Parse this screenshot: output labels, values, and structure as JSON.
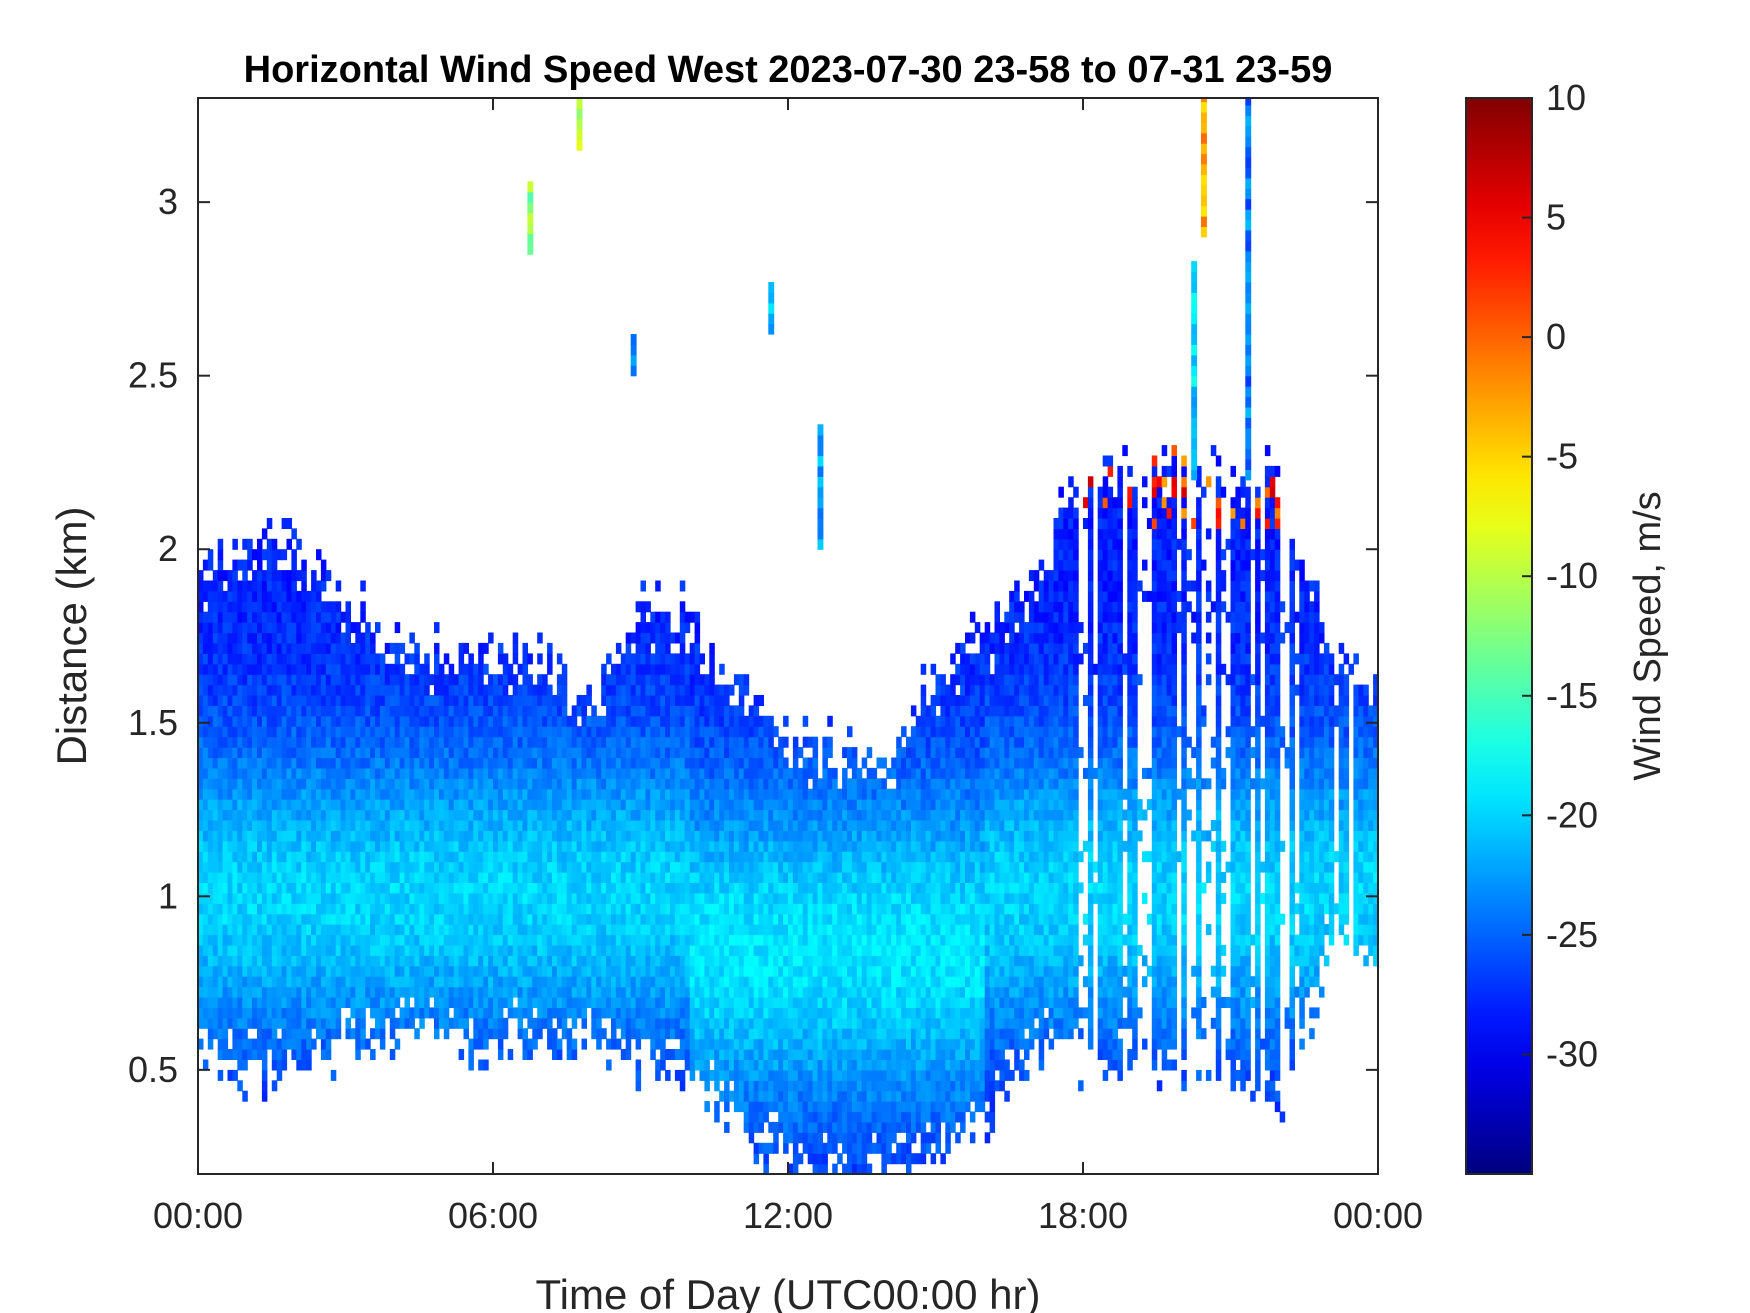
{
  "chart_data": {
    "type": "heatmap",
    "title": "Horizontal Wind Speed West 2023-07-30 23-58 to 07-31 23-59",
    "xlabel": "Time of Day (UTC00:00 hr)",
    "ylabel": "Distance (km)",
    "x_ticks": [
      "00:00",
      "06:00",
      "12:00",
      "18:00",
      "00:00"
    ],
    "x_tick_hours": [
      0,
      6,
      12,
      18,
      24
    ],
    "xlim_hours": [
      0,
      24
    ],
    "y_ticks": [
      0.5,
      1,
      1.5,
      2,
      2.5,
      3
    ],
    "y_tick_labels": [
      "0.5",
      "1",
      "1.5",
      "2",
      "2.5",
      "3"
    ],
    "ylim": [
      0.2,
      3.3
    ],
    "colorbar": {
      "label": "Wind Speed, m/s",
      "colormap": "jet",
      "range": [
        -35,
        10
      ],
      "ticks": [
        10,
        5,
        0,
        -5,
        -10,
        -15,
        -20,
        -25,
        -30
      ],
      "tick_labels": [
        "10",
        "5",
        "0",
        "-5",
        "-10",
        "-15",
        "-20",
        "-25",
        "-30"
      ]
    },
    "grid": false,
    "colors": {
      "missing": "#ffffff",
      "axis": "#262626"
    },
    "layer_profile": [
      {
        "hour": 0.0,
        "bottom": 0.55,
        "top": 1.95
      },
      {
        "hour": 1.0,
        "bottom": 0.5,
        "top": 1.98
      },
      {
        "hour": 2.0,
        "bottom": 0.52,
        "top": 2.0
      },
      {
        "hour": 3.0,
        "bottom": 0.58,
        "top": 1.85
      },
      {
        "hour": 4.0,
        "bottom": 0.62,
        "top": 1.72
      },
      {
        "hour": 5.0,
        "bottom": 0.6,
        "top": 1.7
      },
      {
        "hour": 6.0,
        "bottom": 0.6,
        "top": 1.7
      },
      {
        "hour": 7.0,
        "bottom": 0.58,
        "top": 1.68
      },
      {
        "hour": 8.0,
        "bottom": 0.58,
        "top": 1.55
      },
      {
        "hour": 9.0,
        "bottom": 0.52,
        "top": 1.85
      },
      {
        "hour": 10.0,
        "bottom": 0.5,
        "top": 1.8
      },
      {
        "hour": 11.0,
        "bottom": 0.35,
        "top": 1.6
      },
      {
        "hour": 12.0,
        "bottom": 0.22,
        "top": 1.45
      },
      {
        "hour": 13.0,
        "bottom": 0.2,
        "top": 1.4
      },
      {
        "hour": 14.0,
        "bottom": 0.2,
        "top": 1.4
      },
      {
        "hour": 15.0,
        "bottom": 0.25,
        "top": 1.6
      },
      {
        "hour": 16.0,
        "bottom": 0.35,
        "top": 1.75
      },
      {
        "hour": 17.0,
        "bottom": 0.55,
        "top": 1.9
      },
      {
        "hour": 17.5,
        "bottom": 0.55,
        "top": 2.1
      },
      {
        "hour": 18.0,
        "bottom": 0.55,
        "top": 2.2
      },
      {
        "hour": 19.0,
        "bottom": 0.5,
        "top": 2.25
      },
      {
        "hour": 20.0,
        "bottom": 0.5,
        "top": 2.25
      },
      {
        "hour": 21.0,
        "bottom": 0.45,
        "top": 2.25
      },
      {
        "hour": 22.0,
        "bottom": 0.4,
        "top": 2.2
      },
      {
        "hour": 23.0,
        "bottom": 0.85,
        "top": 1.7
      },
      {
        "hour": 24.0,
        "bottom": 0.8,
        "top": 1.6
      }
    ],
    "isolated_patches": [
      {
        "hour": 6.7,
        "bottom": 2.85,
        "top": 3.05,
        "speed": -12
      },
      {
        "hour": 7.7,
        "bottom": 3.15,
        "top": 3.3,
        "speed": -10
      },
      {
        "hour": 8.8,
        "bottom": 2.5,
        "top": 2.6,
        "speed": -24
      },
      {
        "hour": 11.6,
        "bottom": 2.62,
        "top": 2.76,
        "speed": -22
      },
      {
        "hour": 12.6,
        "bottom": 2.0,
        "top": 2.35,
        "speed": -22
      },
      {
        "hour": 20.2,
        "bottom": 2.2,
        "top": 2.8,
        "speed": -20
      },
      {
        "hour": 20.4,
        "bottom": 2.9,
        "top": 3.3,
        "speed": -3
      },
      {
        "hour": 21.3,
        "bottom": 2.2,
        "top": 3.3,
        "speed": -24
      }
    ]
  }
}
